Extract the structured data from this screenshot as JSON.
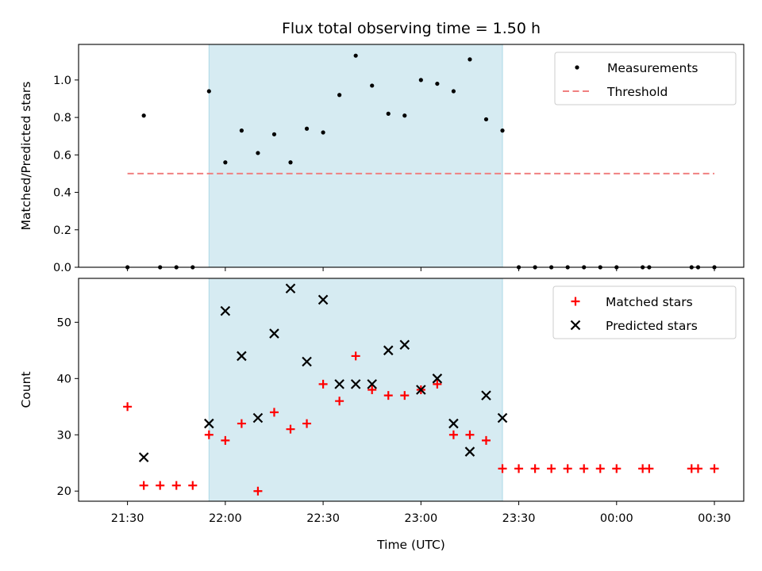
{
  "chart_data": {
    "title": "Flux total observing time = 1.50 h",
    "xlabel": "Time (UTC)",
    "x_ticks": [
      "21:30",
      "22:00",
      "22:30",
      "23:00",
      "23:30",
      "00:00",
      "00:30"
    ],
    "shaded_region": {
      "start": "21:55",
      "end": "23:25",
      "color": "#add8e6"
    },
    "panels": [
      {
        "type": "scatter",
        "ylabel": "Matched/Predicted stars",
        "ylim": [
          0,
          1.19
        ],
        "y_ticks": [
          "0.0",
          "0.2",
          "0.4",
          "0.6",
          "0.8",
          "1.0"
        ],
        "legend_position": "upper right",
        "series": [
          {
            "name": "Measurements",
            "marker": "dot",
            "color": "#000000",
            "points": [
              [
                "21:30",
                0.0
              ],
              [
                "21:35",
                0.81
              ],
              [
                "21:40",
                0.0
              ],
              [
                "21:45",
                0.0
              ],
              [
                "21:50",
                0.0
              ],
              [
                "21:55",
                0.94
              ],
              [
                "22:00",
                0.56
              ],
              [
                "22:05",
                0.73
              ],
              [
                "22:10",
                0.61
              ],
              [
                "22:15",
                0.71
              ],
              [
                "22:20",
                0.56
              ],
              [
                "22:25",
                0.74
              ],
              [
                "22:30",
                0.72
              ],
              [
                "22:35",
                0.92
              ],
              [
                "22:40",
                1.13
              ],
              [
                "22:45",
                0.97
              ],
              [
                "22:50",
                0.82
              ],
              [
                "22:55",
                0.81
              ],
              [
                "23:00",
                1.0
              ],
              [
                "23:05",
                0.98
              ],
              [
                "23:10",
                0.94
              ],
              [
                "23:15",
                1.11
              ],
              [
                "23:20",
                0.79
              ],
              [
                "23:25",
                0.73
              ],
              [
                "23:30",
                0.0
              ],
              [
                "23:35",
                0.0
              ],
              [
                "23:40",
                0.0
              ],
              [
                "23:45",
                0.0
              ],
              [
                "23:50",
                0.0
              ],
              [
                "23:55",
                0.0
              ],
              [
                "00:00",
                0.0
              ],
              [
                "00:08",
                0.0
              ],
              [
                "00:10",
                0.0
              ],
              [
                "00:23",
                0.0
              ],
              [
                "00:25",
                0.0
              ],
              [
                "00:30",
                0.0
              ]
            ]
          },
          {
            "name": "Threshold",
            "marker": "dashed-line",
            "color": "#f08080",
            "points": [
              [
                "21:30",
                0.5
              ],
              [
                "00:30",
                0.5
              ]
            ]
          }
        ]
      },
      {
        "type": "scatter",
        "ylabel": "Count",
        "ylim": [
          18.2,
          57.8
        ],
        "y_ticks": [
          "20",
          "30",
          "40",
          "50"
        ],
        "legend_position": "upper right",
        "series": [
          {
            "name": "Matched stars",
            "marker": "plus",
            "color": "#ff0000",
            "points": [
              [
                "21:30",
                35
              ],
              [
                "21:35",
                21
              ],
              [
                "21:40",
                21
              ],
              [
                "21:45",
                21
              ],
              [
                "21:50",
                21
              ],
              [
                "21:55",
                30
              ],
              [
                "22:00",
                29
              ],
              [
                "22:05",
                32
              ],
              [
                "22:10",
                20
              ],
              [
                "22:15",
                34
              ],
              [
                "22:20",
                31
              ],
              [
                "22:25",
                32
              ],
              [
                "22:30",
                39
              ],
              [
                "22:35",
                36
              ],
              [
                "22:40",
                44
              ],
              [
                "22:45",
                38
              ],
              [
                "22:50",
                37
              ],
              [
                "22:55",
                37
              ],
              [
                "23:00",
                38
              ],
              [
                "23:05",
                39
              ],
              [
                "23:10",
                30
              ],
              [
                "23:15",
                30
              ],
              [
                "23:20",
                29
              ],
              [
                "23:25",
                24
              ],
              [
                "23:30",
                24
              ],
              [
                "23:35",
                24
              ],
              [
                "23:40",
                24
              ],
              [
                "23:45",
                24
              ],
              [
                "23:50",
                24
              ],
              [
                "23:55",
                24
              ],
              [
                "00:00",
                24
              ],
              [
                "00:08",
                24
              ],
              [
                "00:10",
                24
              ],
              [
                "00:23",
                24
              ],
              [
                "00:25",
                24
              ],
              [
                "00:30",
                24
              ]
            ]
          },
          {
            "name": "Predicted stars",
            "marker": "x",
            "color": "#000000",
            "points": [
              [
                "21:35",
                26
              ],
              [
                "21:55",
                32
              ],
              [
                "22:00",
                52
              ],
              [
                "22:05",
                44
              ],
              [
                "22:10",
                33
              ],
              [
                "22:15",
                48
              ],
              [
                "22:20",
                56
              ],
              [
                "22:25",
                43
              ],
              [
                "22:30",
                54
              ],
              [
                "22:35",
                39
              ],
              [
                "22:40",
                39
              ],
              [
                "22:45",
                39
              ],
              [
                "22:50",
                45
              ],
              [
                "22:55",
                46
              ],
              [
                "23:00",
                38
              ],
              [
                "23:05",
                40
              ],
              [
                "23:10",
                32
              ],
              [
                "23:15",
                27
              ],
              [
                "23:20",
                37
              ],
              [
                "23:25",
                33
              ]
            ]
          }
        ]
      }
    ]
  }
}
